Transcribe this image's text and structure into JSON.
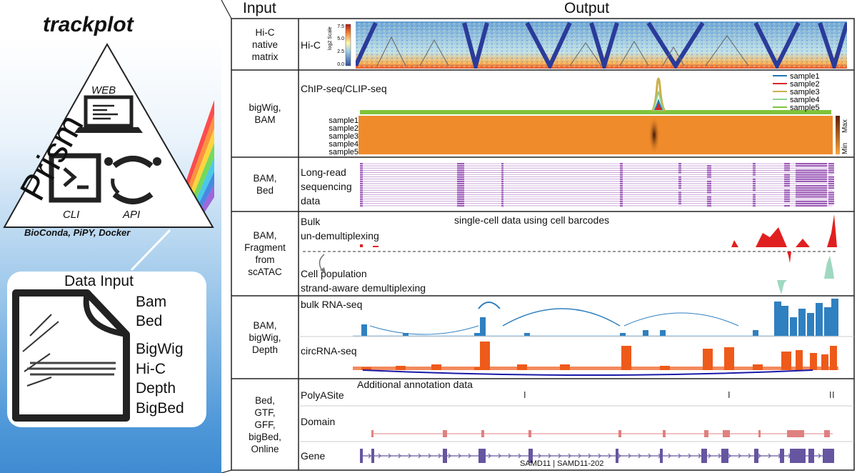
{
  "left": {
    "title": "trackplot",
    "prism": "Prism",
    "web": "WEB",
    "cli": "CLI",
    "api": "API",
    "distribution": "BioConda, PiPY, Docker",
    "data_input_title": "Data Input",
    "formats": [
      "Bam",
      "Bed",
      "BigWig",
      "Hi-C",
      "Depth",
      "BigBed"
    ]
  },
  "headers": {
    "input": "Input",
    "output": "Output"
  },
  "rows": [
    {
      "input": [
        "Hi-C",
        "native",
        "matrix"
      ]
    },
    {
      "input": [
        "bigWig,",
        "BAM"
      ]
    },
    {
      "input": [
        "BAM,",
        "Bed"
      ]
    },
    {
      "input": [
        "BAM,",
        "Fragment",
        "from",
        "scATAC"
      ]
    },
    {
      "input": [
        "BAM,",
        "bigWig,",
        "Depth"
      ]
    },
    {
      "input": [
        "Bed,",
        "GTF,",
        "GFF,",
        "bigBed,",
        "Online"
      ]
    }
  ],
  "hic": {
    "label": "Hi-C",
    "scale_title": "log2 Scale",
    "scale_ticks": [
      "0.0",
      "2.5",
      "5.0",
      "7.5"
    ]
  },
  "chip": {
    "label": "ChIP-seq/CLIP-seq",
    "legend": [
      "sample1",
      "sample2",
      "sample3",
      "sample4",
      "sample5"
    ],
    "heat_rows": [
      "sample1",
      "sample2",
      "sample3",
      "sample4",
      "sample5"
    ],
    "heat_max": "Max",
    "heat_min": "Min",
    "colors": [
      "#1f77b4",
      "#d62728",
      "#ccb04b",
      "#8fd18f",
      "#7fc33a"
    ]
  },
  "longread": {
    "label": [
      "Long-read",
      "sequencing",
      "data"
    ],
    "color": "#9b59b6"
  },
  "sc": {
    "title": "single-cell data using cell barcodes",
    "bulk": [
      "Bulk",
      "un-demultiplexing"
    ],
    "cellpop": [
      "Cell population",
      "strand-aware demultiplexing"
    ],
    "bulk_color": "#e02020",
    "cell_color": "#9fd8c0"
  },
  "rna": {
    "bulk_label": "bulk RNA-seq",
    "circ_label": "circRNA-seq",
    "bulk_color": "#2f80c0",
    "circ_color": "#ee5a1a",
    "arc_color": "#1a1aa8"
  },
  "annot": {
    "title": "Additional annotation data",
    "polya": "PolyASite",
    "domain": "Domain",
    "gene": "Gene",
    "transcript": "SAMD11 | SAMD11-202",
    "domain_color": "#e08080",
    "gene_color": "#6655a0"
  }
}
